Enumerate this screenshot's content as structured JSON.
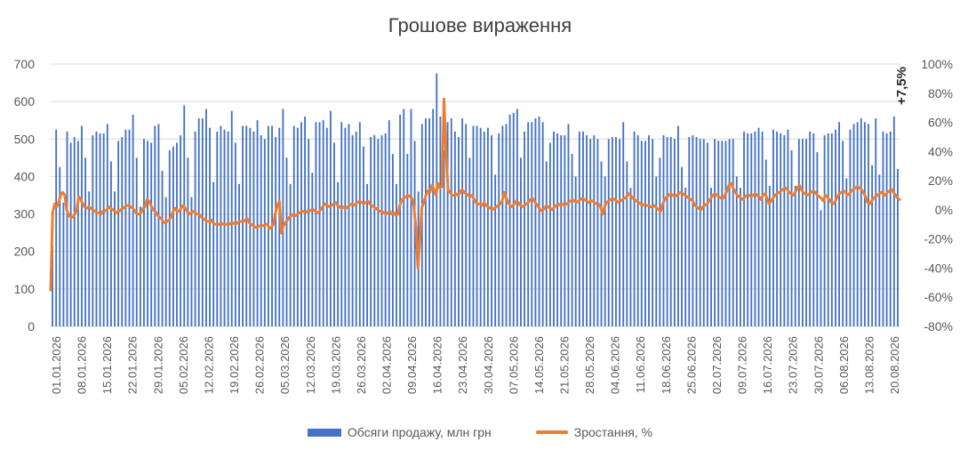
{
  "chart_data": {
    "type": "bar+line",
    "title": "Грошове вираження",
    "y_left": {
      "range": [
        0,
        700
      ],
      "ticks": [
        "0",
        "100",
        "200",
        "300",
        "400",
        "500",
        "600",
        "700"
      ]
    },
    "y_right": {
      "range": [
        -80,
        100
      ],
      "ticks": [
        "-80%",
        "-60%",
        "-40%",
        "-20%",
        "0%",
        "20%",
        "40%",
        "60%",
        "80%",
        "100%"
      ]
    },
    "x_ticks": [
      "01.01.2026",
      "08.01.2026",
      "15.01.2026",
      "22.01.2026",
      "29.01.2026",
      "05.02.2026",
      "12.02.2026",
      "19.02.2026",
      "26.02.2026",
      "05.03.2026",
      "12.03.2026",
      "19.03.2026",
      "26.03.2026",
      "02.04.2026",
      "09.04.2026",
      "16.04.2026",
      "23.04.2026",
      "30.04.2026",
      "07.05.2026",
      "14.05.2026",
      "21.05.2026",
      "28.05.2026",
      "04.06.2026",
      "11.06.2026",
      "18.06.2026",
      "25.06.2026",
      "02.07.2026",
      "09.07.2026",
      "16.07.2026",
      "23.07.2026",
      "30.07.2026",
      "06.08.2026",
      "13.08.2026",
      "20.08.2026"
    ],
    "annotation": "+7,5%",
    "series": [
      {
        "name": "Обсяги продажу, млн грн",
        "axis": "left",
        "type": "bar",
        "color": "#4472C4",
        "start": "01.01.2026",
        "values": [
          215,
          525,
          425,
          330,
          520,
          490,
          505,
          495,
          535,
          450,
          360,
          510,
          520,
          515,
          515,
          540,
          440,
          360,
          495,
          505,
          525,
          525,
          565,
          450,
          320,
          500,
          495,
          490,
          535,
          540,
          415,
          345,
          470,
          480,
          490,
          510,
          590,
          450,
          345,
          520,
          555,
          555,
          580,
          530,
          385,
          520,
          535,
          525,
          520,
          575,
          490,
          380,
          535,
          535,
          530,
          520,
          550,
          510,
          500,
          535,
          535,
          505,
          530,
          580,
          450,
          380,
          535,
          530,
          545,
          560,
          500,
          410,
          545,
          545,
          550,
          530,
          575,
          490,
          385,
          545,
          530,
          540,
          510,
          520,
          545,
          480,
          380,
          505,
          510,
          500,
          510,
          515,
          550,
          460,
          380,
          565,
          580,
          460,
          580,
          495,
          360,
          540,
          555,
          555,
          580,
          675,
          560,
          470,
          545,
          555,
          520,
          505,
          555,
          540,
          450,
          535,
          535,
          530,
          520,
          530,
          510,
          405,
          515,
          535,
          540,
          565,
          570,
          580,
          450,
          520,
          545,
          545,
          555,
          560,
          545,
          440,
          490,
          520,
          515,
          510,
          510,
          540,
          460,
          400,
          520,
          520,
          510,
          500,
          510,
          500,
          440,
          400,
          500,
          505,
          505,
          500,
          545,
          440,
          370,
          520,
          510,
          495,
          495,
          510,
          500,
          400,
          450,
          510,
          505,
          505,
          500,
          535,
          425,
          370,
          505,
          510,
          505,
          500,
          500,
          490,
          370,
          500,
          495,
          495,
          495,
          500,
          500,
          400,
          370,
          520,
          515,
          515,
          520,
          530,
          520,
          445,
          375,
          525,
          520,
          515,
          510,
          525,
          470,
          375,
          500,
          500,
          500,
          520,
          515,
          465,
          310,
          510,
          515,
          515,
          525,
          545,
          495,
          395,
          525,
          540,
          545,
          555,
          545,
          540,
          430,
          555,
          405,
          520,
          515,
          520,
          560,
          420
        ]
      },
      {
        "name": "Зростання, %",
        "axis": "right",
        "type": "line",
        "color": "#ED7D31",
        "values": [
          -55,
          -2,
          4,
          2,
          5,
          10,
          12,
          10,
          0,
          -4,
          -5,
          -5,
          -3,
          0,
          9,
          7,
          4,
          2,
          1,
          2,
          1,
          0,
          -1,
          -2,
          -2,
          -3,
          -1,
          -1,
          0,
          2,
          1,
          0,
          -1,
          -2,
          -1,
          0,
          1,
          2,
          3,
          3,
          2,
          1,
          -1,
          -3,
          -3,
          -2,
          1,
          2,
          7,
          6,
          3,
          0,
          -1,
          -3,
          -5,
          -6,
          -8,
          -9,
          -8,
          -7,
          -5,
          -1,
          1,
          -1,
          -1,
          1,
          3,
          1,
          -1,
          -3,
          -2,
          -1,
          -2,
          -3,
          -3,
          -5,
          -6,
          -7,
          -8,
          -8,
          -7,
          -9,
          -10,
          -10,
          -10,
          -9,
          -10,
          -10,
          -10,
          -10,
          -9,
          -9,
          -10,
          -9,
          -8,
          -8,
          -8,
          -7,
          -6,
          -9,
          -10,
          -11,
          -12,
          -12,
          -11,
          -11,
          -11,
          -10,
          -10,
          -13,
          -12,
          -10,
          -2,
          3,
          6,
          -16,
          -11,
          -9,
          -7,
          -5,
          -4,
          -3,
          -4,
          -3,
          -2,
          -1,
          -1,
          -2,
          -1,
          -1,
          0,
          0,
          -1,
          -2,
          -1,
          1,
          3,
          4,
          3,
          2,
          3,
          4,
          5,
          3,
          2,
          1,
          2,
          1,
          2,
          3,
          4,
          3,
          4,
          5,
          6,
          5,
          4,
          5,
          6,
          4,
          3,
          2,
          1,
          0,
          -1,
          -1,
          -2,
          -3,
          -2,
          -1,
          -3,
          -2,
          -4,
          -3,
          3,
          7,
          8,
          9,
          10,
          9,
          8,
          2,
          -12,
          -40,
          -20,
          2,
          5,
          10,
          13,
          12,
          17,
          14,
          10,
          18,
          15,
          16,
          76,
          40,
          14,
          12,
          10,
          10,
          11,
          10,
          12,
          14,
          12,
          11,
          10,
          9,
          10,
          7,
          5,
          4,
          4,
          3,
          5,
          3,
          2,
          1,
          0,
          1,
          2,
          3,
          4,
          6,
          12,
          8,
          5,
          3,
          2,
          4,
          6,
          5,
          3,
          2,
          3,
          4,
          5,
          7,
          8,
          6,
          4,
          2,
          0,
          -1,
          1,
          3,
          2,
          1,
          0,
          2,
          3,
          4,
          3,
          4,
          3,
          4,
          5,
          6,
          7,
          6,
          5,
          6,
          7,
          8,
          7,
          6,
          5,
          6,
          6,
          5,
          4,
          4,
          2,
          -3,
          2,
          5,
          6,
          7,
          8,
          7,
          6,
          5,
          6,
          7,
          8,
          9,
          11,
          10,
          8,
          7,
          6,
          5,
          4,
          3,
          4,
          3,
          3,
          2,
          2,
          3,
          1,
          0,
          -1,
          4,
          7,
          9,
          10,
          11,
          10,
          9,
          10,
          11,
          12,
          11,
          10,
          9,
          8,
          7,
          6,
          3,
          2,
          1,
          0,
          2,
          3,
          4,
          6,
          8,
          10,
          11,
          10,
          9,
          8,
          8,
          10,
          13,
          17,
          18,
          15,
          13,
          10,
          9,
          8,
          7,
          9,
          10,
          10,
          9,
          10,
          11,
          10,
          9,
          7,
          10,
          11,
          8,
          4,
          6,
          8,
          10,
          11,
          12,
          13,
          14,
          15,
          14,
          12,
          11,
          10,
          12,
          15,
          17,
          14,
          12,
          11,
          10,
          11,
          12,
          13,
          12,
          10,
          9,
          8,
          6,
          10,
          9,
          7,
          5,
          4,
          6,
          9,
          11,
          12,
          13,
          12,
          10,
          11,
          13,
          14,
          15,
          16,
          15,
          14,
          12,
          9,
          5,
          4,
          6,
          8,
          9,
          10,
          11,
          12,
          11,
          10,
          12,
          13,
          14,
          12,
          10,
          8,
          7
        ]
      }
    ],
    "legend_position": "bottom",
    "grid": "horizontal"
  }
}
